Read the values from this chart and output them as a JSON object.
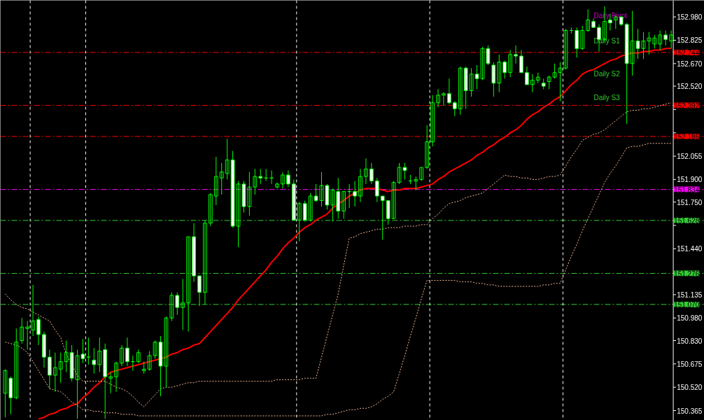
{
  "chart_data": {
    "type": "candlestick",
    "categories": [
      null,
      null,
      null,
      null,
      null,
      null,
      null,
      null,
      null,
      null,
      null,
      null,
      null,
      null,
      null,
      null,
      null,
      null,
      null,
      null,
      null,
      null,
      null,
      null,
      null,
      null,
      null,
      null,
      null,
      null,
      null,
      null,
      null,
      null,
      null,
      null,
      null,
      null,
      null,
      null,
      null,
      null,
      null,
      null,
      null,
      null,
      null,
      null,
      null,
      null,
      null,
      null,
      null,
      null,
      null,
      null,
      null,
      null,
      null,
      null,
      null,
      null,
      null,
      null,
      null,
      null,
      null,
      null,
      null,
      null,
      null,
      null,
      null,
      null,
      null,
      null,
      null,
      null,
      null,
      null,
      null,
      null,
      null,
      null,
      null,
      null,
      null,
      null,
      null,
      null,
      null,
      null,
      null,
      null,
      null,
      null,
      null,
      null,
      null,
      null,
      null,
      null,
      null,
      null,
      null,
      null,
      null,
      null,
      null,
      null,
      null,
      null,
      null,
      null,
      null,
      null,
      null,
      null,
      null,
      null,
      null
    ],
    "tick_labels": "y",
    "grid": "x",
    "ylim": [
      150.3,
      153.09
    ],
    "yticks": [
      {
        "value": 152.98,
        "label": "152.980"
      },
      152.825,
      {
        "value": 152.67,
        "label": "152.670"
      },
      {
        "value": 152.52,
        "label": "152.520"
      },
      {
        "value": 152.365,
        "label": null
      },
      {
        "value": 152.21,
        "label": null
      },
      152.055,
      {
        "value": 151.9,
        "label": "151.900"
      },
      {
        "value": 151.75,
        "label": "151.750"
      },
      {
        "value": 151.595,
        "label": null
      },
      {
        "value": 151.44,
        "label": "151.440"
      },
      {
        "value": 151.285,
        "label": null
      },
      151.135,
      {
        "value": 150.98,
        "label": "150.980"
      },
      {
        "value": 150.83,
        "label": "150.830"
      },
      150.675,
      {
        "value": 150.52,
        "label": "150.520"
      },
      150.365
    ],
    "series": [
      {
        "color": "#00ff00",
        "ohlc": [
          [
            150.48,
            150.64,
            150.32,
            150.63
          ],
          [
            150.58,
            150.59,
            150.34,
            150.45
          ],
          [
            150.45,
            150.91,
            150.44,
            150.82
          ],
          [
            150.83,
            150.98,
            150.81,
            150.92
          ],
          [
            150.91,
            150.96,
            150.77,
            150.92
          ],
          [
            150.9,
            151.2,
            150.86,
            150.96
          ],
          [
            150.97,
            150.99,
            150.8,
            150.87
          ],
          [
            150.87,
            150.89,
            150.65,
            150.72
          ],
          [
            150.72,
            150.77,
            150.51,
            150.6
          ],
          [
            150.6,
            150.75,
            150.49,
            150.65
          ],
          [
            150.64,
            150.75,
            150.55,
            150.69
          ],
          [
            150.69,
            150.83,
            150.62,
            150.75
          ],
          [
            150.75,
            150.8,
            150.56,
            150.58
          ],
          [
            150.57,
            150.77,
            150.31,
            150.73
          ],
          [
            150.74,
            150.84,
            150.68,
            150.71
          ],
          [
            150.72,
            150.85,
            150.67,
            150.72
          ],
          [
            150.7,
            150.78,
            150.61,
            150.67
          ],
          [
            150.67,
            150.85,
            150.62,
            150.76
          ],
          [
            150.77,
            150.81,
            150.31,
            150.59
          ],
          [
            150.58,
            150.62,
            150.48,
            150.59
          ],
          [
            150.59,
            150.69,
            150.49,
            150.68
          ],
          [
            150.68,
            150.8,
            150.66,
            150.78
          ],
          [
            150.78,
            150.85,
            150.66,
            150.69
          ],
          [
            150.69,
            150.73,
            150.63,
            150.69
          ],
          [
            150.69,
            150.77,
            150.68,
            150.75
          ],
          [
            150.63,
            150.69,
            150.61,
            150.64
          ],
          [
            150.64,
            150.76,
            150.63,
            150.73
          ],
          [
            150.73,
            150.83,
            150.71,
            150.82
          ],
          [
            150.82,
            150.86,
            150.46,
            150.66
          ],
          [
            150.66,
            150.99,
            150.52,
            150.98
          ],
          [
            150.98,
            151.15,
            150.96,
            151.13
          ],
          [
            151.13,
            151.15,
            151.0,
            151.05
          ],
          [
            151.05,
            151.24,
            150.9,
            151.08
          ],
          [
            151.08,
            151.52,
            150.89,
            151.52
          ],
          [
            151.52,
            151.61,
            151.22,
            151.26
          ],
          [
            151.26,
            151.26,
            151.06,
            151.15
          ],
          [
            151.15,
            151.63,
            151.07,
            151.61
          ],
          [
            151.61,
            151.81,
            151.59,
            151.8
          ],
          [
            151.79,
            152.05,
            151.73,
            151.92
          ],
          [
            151.91,
            152.01,
            151.8,
            151.95
          ],
          [
            151.94,
            152.17,
            151.9,
            152.03
          ],
          [
            152.03,
            152.09,
            151.58,
            151.59
          ],
          [
            151.59,
            151.89,
            151.45,
            151.87
          ],
          [
            151.87,
            151.89,
            151.68,
            151.72
          ],
          [
            151.72,
            151.95,
            151.66,
            151.85
          ],
          [
            151.85,
            151.97,
            151.8,
            151.92
          ],
          [
            151.92,
            151.97,
            151.87,
            151.91
          ],
          [
            151.91,
            151.97,
            151.89,
            151.91
          ],
          [
            151.91,
            151.96,
            151.87,
            151.91
          ],
          [
            151.85,
            151.88,
            151.84,
            151.87
          ],
          [
            151.87,
            151.95,
            151.84,
            151.93
          ],
          [
            151.93,
            151.96,
            151.85,
            151.87
          ],
          [
            151.87,
            151.9,
            151.63,
            151.63
          ],
          [
            151.63,
            151.75,
            151.49,
            151.74
          ],
          [
            151.74,
            151.76,
            151.62,
            151.63
          ],
          [
            151.63,
            151.81,
            151.62,
            151.79
          ],
          [
            151.79,
            151.87,
            151.75,
            151.76
          ],
          [
            151.76,
            151.95,
            151.72,
            151.86
          ],
          [
            151.86,
            151.87,
            151.7,
            151.73
          ],
          [
            151.73,
            151.84,
            151.62,
            151.83
          ],
          [
            151.82,
            151.91,
            151.64,
            151.69
          ],
          [
            151.69,
            151.82,
            151.64,
            151.82
          ],
          [
            151.82,
            151.87,
            151.71,
            151.82
          ],
          [
            151.82,
            151.89,
            151.72,
            151.79
          ],
          [
            151.79,
            151.97,
            151.75,
            151.92
          ],
          [
            151.92,
            152.04,
            151.87,
            151.97
          ],
          [
            151.97,
            152.01,
            151.87,
            151.89
          ],
          [
            151.89,
            151.91,
            151.75,
            151.79
          ],
          [
            151.79,
            151.79,
            151.5,
            151.76
          ],
          [
            151.76,
            151.76,
            151.6,
            151.64
          ],
          [
            151.64,
            151.89,
            151.64,
            151.88
          ],
          [
            151.88,
            152.01,
            151.87,
            151.98
          ],
          [
            151.98,
            152.01,
            151.9,
            151.96
          ],
          [
            151.89,
            151.93,
            151.87,
            151.89
          ],
          [
            151.89,
            151.92,
            151.83,
            151.9
          ],
          [
            151.9,
            151.98,
            151.89,
            151.98
          ],
          [
            151.98,
            152.26,
            151.97,
            152.15
          ],
          [
            152.15,
            152.46,
            152.12,
            152.41
          ],
          [
            152.41,
            152.5,
            152.38,
            152.46
          ],
          [
            152.46,
            152.48,
            152.39,
            152.47
          ],
          [
            152.47,
            152.57,
            152.4,
            152.41
          ],
          [
            152.41,
            152.42,
            152.32,
            152.37
          ],
          [
            152.37,
            152.65,
            152.33,
            152.64
          ],
          [
            152.64,
            152.65,
            152.37,
            152.49
          ],
          [
            152.49,
            152.64,
            152.45,
            152.6
          ],
          [
            152.6,
            152.66,
            152.5,
            152.57
          ],
          [
            152.57,
            152.78,
            152.56,
            152.77
          ],
          [
            152.77,
            152.79,
            152.66,
            152.67
          ],
          [
            152.66,
            152.68,
            152.45,
            152.54
          ],
          [
            152.54,
            152.73,
            152.48,
            152.68
          ],
          [
            152.68,
            152.69,
            152.57,
            152.61
          ],
          [
            152.61,
            152.76,
            152.58,
            152.73
          ],
          [
            152.73,
            152.79,
            152.67,
            152.72
          ],
          [
            152.72,
            152.76,
            152.61,
            152.61
          ],
          [
            152.61,
            152.65,
            152.53,
            152.53
          ],
          [
            152.53,
            152.6,
            152.48,
            152.56
          ],
          [
            152.56,
            152.61,
            152.54,
            152.58
          ],
          [
            152.54,
            152.57,
            152.5,
            152.52
          ],
          [
            152.55,
            152.59,
            152.5,
            152.58
          ],
          [
            152.58,
            152.67,
            152.57,
            152.61
          ],
          [
            152.61,
            152.68,
            152.42,
            152.64
          ],
          [
            152.64,
            152.9,
            152.63,
            152.89
          ],
          [
            152.89,
            152.91,
            152.87,
            152.89
          ],
          [
            152.89,
            152.91,
            152.71,
            152.77
          ],
          [
            152.77,
            152.92,
            152.76,
            152.89
          ],
          [
            152.89,
            153.03,
            152.88,
            152.96
          ],
          [
            152.95,
            152.97,
            152.91,
            152.91
          ],
          [
            152.91,
            152.93,
            152.75,
            152.83
          ],
          [
            152.83,
            153.05,
            152.82,
            152.95
          ],
          [
            152.96,
            153.0,
            152.89,
            152.94
          ],
          [
            152.96,
            152.99,
            152.9,
            152.98
          ],
          [
            152.98,
            152.98,
            152.92,
            152.93
          ],
          [
            152.93,
            152.94,
            152.27,
            152.67
          ],
          [
            152.67,
            153.02,
            152.59,
            152.82
          ],
          [
            152.82,
            152.9,
            152.7,
            152.77
          ],
          [
            152.77,
            152.88,
            152.7,
            152.82
          ],
          [
            152.82,
            152.88,
            152.73,
            152.84
          ],
          [
            152.8,
            152.86,
            152.77,
            152.84
          ],
          [
            152.8,
            152.89,
            152.76,
            152.86
          ],
          [
            152.86,
            152.89,
            152.79,
            152.83
          ],
          [
            152.82,
            152.89,
            152.77,
            152.86
          ]
        ]
      },
      {
        "type": "line",
        "color": "#ff0000",
        "values": [
          null,
          null,
          null,
          null,
          null,
          null,
          150.31,
          150.32,
          150.34,
          150.35,
          150.37,
          150.38,
          150.4,
          150.41,
          150.45,
          150.48,
          150.52,
          150.55,
          150.59,
          150.62,
          150.63,
          150.64,
          150.65,
          150.66,
          150.67,
          150.68,
          150.69,
          150.7,
          150.71,
          150.72,
          150.74,
          150.75,
          150.77,
          150.78,
          150.8,
          150.81,
          150.85,
          150.89,
          150.93,
          150.97,
          151.01,
          151.05,
          151.1,
          151.14,
          151.18,
          151.22,
          151.26,
          151.3,
          151.35,
          151.39,
          151.44,
          151.48,
          151.51,
          151.55,
          151.58,
          151.6,
          151.63,
          151.65,
          151.67,
          151.71,
          151.74,
          151.76,
          151.79,
          151.81,
          151.83,
          151.84,
          151.84,
          151.84,
          151.83,
          151.82,
          151.83,
          151.83,
          151.84,
          151.84,
          151.84,
          151.85,
          151.86,
          151.87,
          151.9,
          151.92,
          151.95,
          151.97,
          151.99,
          152.01,
          152.03,
          152.06,
          152.08,
          152.11,
          152.13,
          152.16,
          152.18,
          152.21,
          152.23,
          152.26,
          152.3,
          152.33,
          152.35,
          152.38,
          152.4,
          152.43,
          152.45,
          152.49,
          152.53,
          152.56,
          152.6,
          152.62,
          152.63,
          152.65,
          152.67,
          152.69,
          152.7,
          152.72,
          152.73,
          152.74,
          152.74,
          152.75,
          152.75,
          152.76,
          152.76,
          152.77,
          152.77
        ]
      },
      {
        "type": "line",
        "line_style": "dotted",
        "color": "#f4b894",
        "values": [
          151.14,
          151.1,
          151.07,
          151.05,
          151.04,
          151.02,
          151.0,
          150.98,
          150.96,
          150.9,
          150.85,
          150.74,
          null,
          150.6,
          150.56,
          150.56,
          150.56,
          150.56,
          150.56,
          150.54,
          150.52,
          150.51,
          150.49,
          150.46,
          150.42,
          150.39,
          150.43,
          150.47,
          150.51,
          150.52,
          150.52,
          150.53,
          150.54,
          150.55,
          150.55,
          150.56,
          150.56,
          150.56,
          150.56,
          150.56,
          150.56,
          150.56,
          150.56,
          150.56,
          150.56,
          150.56,
          150.56,
          150.56,
          150.56,
          150.57,
          150.57,
          150.57,
          150.57,
          150.57,
          150.58,
          150.58,
          150.58,
          150.72,
          150.86,
          151.0,
          151.14,
          151.33,
          151.51,
          151.52,
          151.54,
          151.55,
          151.56,
          151.57,
          151.57,
          151.58,
          151.58,
          151.58,
          151.59,
          151.59,
          151.59,
          151.6,
          151.6,
          151.64,
          151.67,
          151.71,
          151.74,
          151.75,
          151.76,
          151.78,
          151.79,
          151.8,
          151.81,
          151.84,
          151.87,
          151.9,
          151.93,
          151.92,
          151.92,
          151.91,
          151.91,
          151.9,
          151.9,
          151.91,
          151.92,
          151.92,
          151.93,
          151.99,
          152.05,
          152.1,
          152.16,
          152.18,
          152.2,
          152.21,
          152.23,
          152.26,
          152.29,
          152.32,
          152.35,
          152.36,
          152.36,
          152.37,
          152.37,
          152.38,
          152.39,
          152.4,
          152.41
        ]
      },
      {
        "type": "line",
        "line_style": "dotted",
        "color": "#f4b894",
        "values": [
          150.82,
          150.81,
          150.8,
          150.78,
          150.75,
          150.69,
          150.63,
          150.57,
          150.51,
          150.5,
          150.49,
          150.46,
          150.42,
          150.4,
          150.37,
          150.37,
          150.36,
          150.36,
          150.35,
          150.35,
          150.35,
          150.34,
          150.34,
          150.34,
          150.33,
          150.33,
          150.33,
          150.33,
          150.33,
          150.33,
          150.33,
          150.33,
          150.33,
          150.33,
          150.33,
          150.33,
          150.33,
          150.33,
          150.33,
          150.33,
          150.33,
          150.33,
          150.33,
          150.33,
          150.33,
          150.33,
          150.33,
          150.33,
          150.33,
          150.33,
          150.33,
          150.33,
          150.33,
          150.33,
          150.33,
          150.33,
          150.33,
          150.33,
          150.34,
          150.34,
          150.35,
          150.36,
          150.37,
          150.37,
          150.38,
          150.38,
          150.39,
          150.41,
          150.44,
          150.46,
          150.49,
          150.61,
          150.73,
          150.86,
          150.98,
          151.11,
          151.23,
          151.23,
          151.23,
          151.23,
          151.23,
          151.23,
          151.22,
          151.22,
          151.22,
          151.21,
          151.21,
          151.2,
          151.2,
          151.19,
          151.19,
          151.19,
          151.19,
          151.19,
          151.19,
          151.19,
          151.19,
          151.2,
          151.2,
          151.21,
          151.21,
          151.3,
          151.39,
          151.47,
          151.56,
          151.64,
          151.72,
          151.8,
          151.88,
          151.94,
          151.99,
          152.05,
          152.11,
          152.12,
          152.12,
          152.13,
          152.14,
          152.14,
          152.14,
          152.14,
          152.14
        ]
      }
    ],
    "ref_lines": [
      {
        "axis": "y",
        "value": 152.744,
        "label": "152.744",
        "color": "#ff0000",
        "line_style": "dashed"
      },
      {
        "axis": "y",
        "value": 152.392,
        "label": "152.392",
        "color": "#ff0000",
        "line_style": "dashed"
      },
      {
        "axis": "y",
        "value": 152.186,
        "label": "152.186",
        "color": "#ff0000",
        "line_style": "dashed"
      },
      {
        "axis": "y",
        "value": 151.834,
        "label": "151.834",
        "color": "#ff00ff",
        "line_style": "dashed"
      },
      {
        "axis": "y",
        "value": 151.628,
        "label": "151.628",
        "color": "#33cc33",
        "line_style": "dashed"
      },
      {
        "axis": "y",
        "value": 151.276,
        "label": "151.276",
        "color": "#33cc33",
        "line_style": "dashed"
      },
      {
        "axis": "y",
        "value": 151.07,
        "label": "151.070",
        "color": "#33cc33",
        "line_style": "dashed"
      }
    ],
    "annotations": [
      "Daily Pivot",
      "Daily S1",
      "Daily S2",
      "Daily S3"
    ]
  }
}
